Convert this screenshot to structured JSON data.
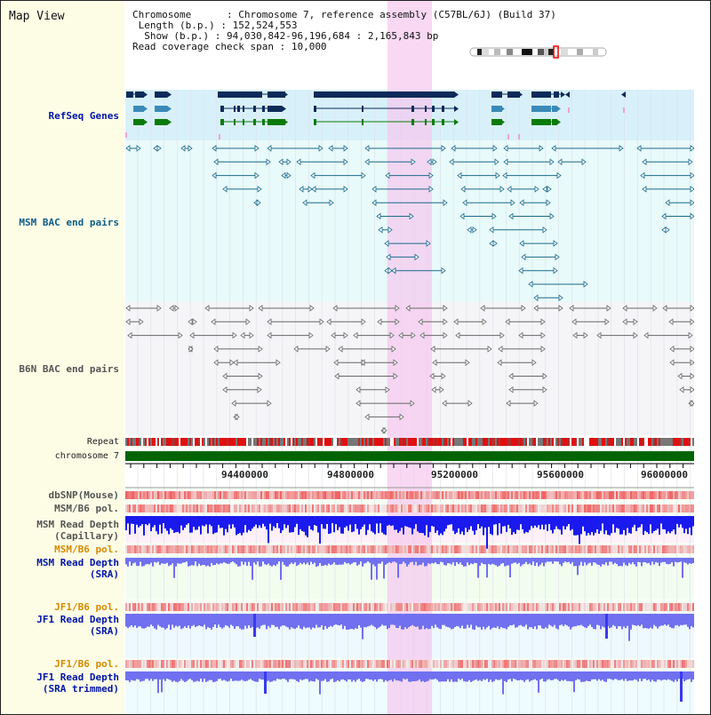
{
  "header": {
    "title": "Map View",
    "chromosome_label": "Chromosome      ",
    "chromosome_value": ": Chromosome 7, reference assembly (C57BL/6J) (Build 37)",
    "length_label": "Length (b.p.) ",
    "length_value": ": 152,524,553",
    "show_label": "Show (b.p.) ",
    "show_value": ": 94,030,842-96,196,684 : 2,165,843 bp",
    "read_coverage_label": "Read coverage check span ",
    "read_coverage_value": ": 10,000"
  },
  "tracks": {
    "refseq": "RefSeq Genes",
    "msm_bac": "MSM BAC end pairs",
    "b6n_bac": "B6N BAC end pairs",
    "repeat": "Repeat",
    "chromosome": "chromosome 7",
    "dbsnp": "dbSNP(Mouse)",
    "msm_b6_pol_1": "MSM/B6 pol.",
    "msm_rd_cap_1": "MSM Read Depth",
    "msm_rd_cap_2": "(Capillary)",
    "msm_b6_pol_2": "MSM/B6 pol.",
    "msm_rd_sra_1": "MSM Read Depth",
    "msm_rd_sra_2": "(SRA)",
    "jf1_b6_pol_1": "JF1/B6 pol.",
    "jf1_rd_sra_1": "JF1 Read Depth",
    "jf1_rd_sra_2": "(SRA)",
    "jf1_b6_pol_2": "JF1/B6 pol.",
    "jf1_rd_trim_1": "JF1 Read Depth",
    "jf1_rd_trim_2": "(SRA trimmed)"
  },
  "ruler": {
    "ticks": [
      "94400000",
      "94800000",
      "95200000",
      "95600000",
      "96000000"
    ]
  },
  "colors": {
    "refseq_bg": "#d8f0fa",
    "msm_bg": "#e8fafa",
    "b6n_bg": "#f5f5f8",
    "highlight": "#f5c8ee",
    "chromosome_bar": "#006400",
    "gene_dark": "#0d2a5a",
    "gene_mid": "#3a8ab8",
    "gene_green": "#0a7a0a",
    "msm_pair": "#1a6a8c",
    "b6n_pair": "#666666",
    "snp_red": "#e0302a",
    "depth_blue": "#1a1aee",
    "depth_light_blue": "#7070f0"
  }
}
